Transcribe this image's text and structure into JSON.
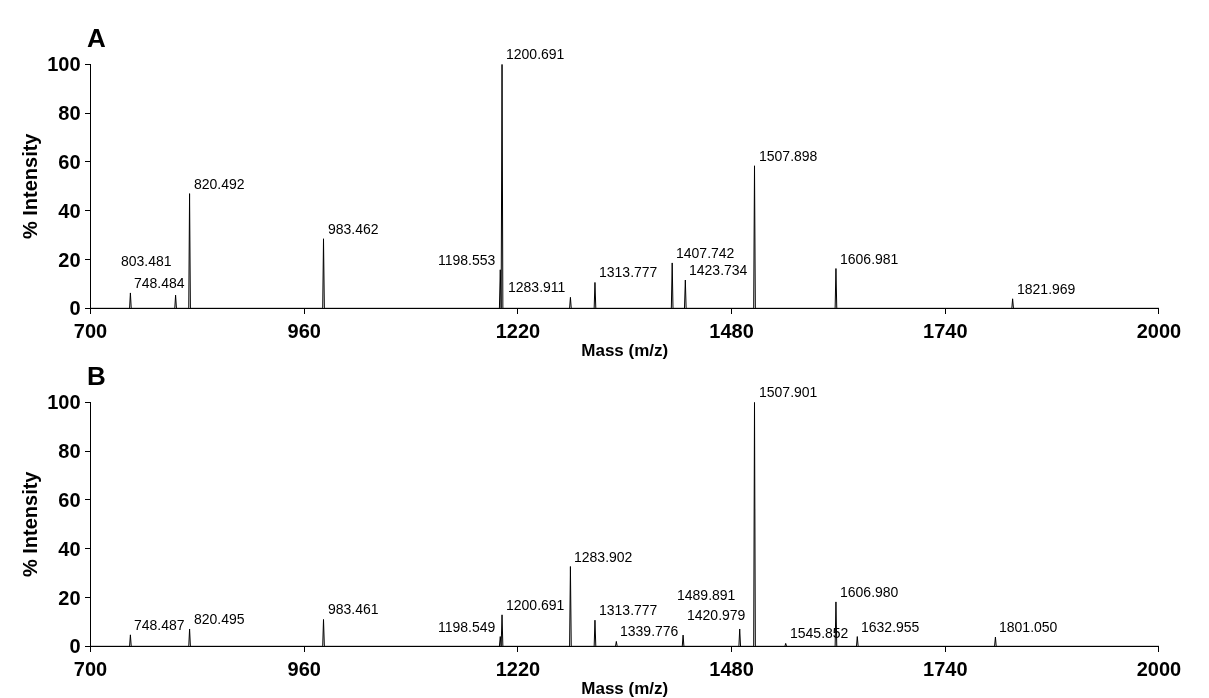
{
  "chart_data": [
    {
      "type": "line",
      "title": "A",
      "xlabel": "Mass (m/z)",
      "ylabel": "% Intensity",
      "x": [
        700,
        747.5,
        748.484,
        749.5,
        802.5,
        803.481,
        804.5,
        819.5,
        820.492,
        821.5,
        982.5,
        983.462,
        984.5,
        1197.5,
        1198.553,
        1199.6,
        1200.691,
        1201.7,
        1282.9,
        1283.911,
        1284.9,
        1312.8,
        1313.777,
        1314.8,
        1406.7,
        1407.742,
        1408.7,
        1422.7,
        1423.734,
        1424.7,
        1506.9,
        1507.898,
        1508.9,
        1606.0,
        1606.981,
        1608.0,
        1821.0,
        1821.969,
        1823.0,
        2000
      ],
      "values": [
        0,
        0,
        6.3,
        0,
        0,
        5.4,
        0,
        0,
        47,
        0,
        0,
        28.5,
        0,
        0,
        15.8,
        0,
        100,
        0,
        0,
        4.5,
        0,
        0,
        10.6,
        0,
        0,
        18.6,
        0,
        0,
        11.6,
        0,
        0,
        58.4,
        0,
        0,
        16.3,
        0,
        0,
        3.9,
        0,
        0
      ],
      "color": "#000000",
      "xlim": [
        700,
        2000
      ],
      "xticks": [
        700,
        960,
        1220,
        1480,
        1740,
        2000
      ],
      "ylim": [
        0,
        100
      ],
      "yticks": [
        0,
        20,
        40,
        60,
        80,
        100
      ],
      "annotations": [
        {
          "text": "748.484",
          "x": 748.484,
          "y": 6.3
        },
        {
          "text": "803.481",
          "x": 803.481,
          "y": 5.4
        },
        {
          "text": "820.492",
          "x": 820.492,
          "y": 47
        },
        {
          "text": "983.462",
          "x": 983.462,
          "y": 28.5
        },
        {
          "text": "1198.553",
          "x": 1198.553,
          "y": 15.8
        },
        {
          "text": "1200.691",
          "x": 1200.691,
          "y": 100
        },
        {
          "text": "1283.911",
          "x": 1283.911,
          "y": 4.5
        },
        {
          "text": "1313.777",
          "x": 1313.777,
          "y": 10.6
        },
        {
          "text": "1407.742",
          "x": 1407.742,
          "y": 18.6
        },
        {
          "text": "1423.734",
          "x": 1423.734,
          "y": 11.6
        },
        {
          "text": "1507.898",
          "x": 1507.898,
          "y": 58.4
        },
        {
          "text": "1606.981",
          "x": 1606.981,
          "y": 16.3
        },
        {
          "text": "1821.969",
          "x": 1821.969,
          "y": 3.9
        }
      ]
    },
    {
      "type": "line",
      "title": "B",
      "xlabel": "Mass (m/z)",
      "ylabel": "% Intensity",
      "x": [
        700,
        747.5,
        748.487,
        749.5,
        819.5,
        820.495,
        821.5,
        982.5,
        983.461,
        984.5,
        1197.5,
        1198.549,
        1199.6,
        1200.691,
        1201.7,
        1282.9,
        1283.902,
        1284.9,
        1312.8,
        1313.777,
        1314.8,
        1338.8,
        1339.776,
        1340.8,
        1420.0,
        1420.979,
        1422.0,
        1488.9,
        1489.891,
        1490.9,
        1506.9,
        1507.901,
        1508.9,
        1544.9,
        1545.852,
        1546.9,
        1606.0,
        1606.98,
        1608.0,
        1632.0,
        1632.955,
        1634.0,
        1800.0,
        1801.05,
        1802.0,
        2000
      ],
      "values": [
        0,
        0,
        4.7,
        0,
        0,
        7.1,
        0,
        0,
        11,
        0,
        0,
        4,
        0,
        12.9,
        0,
        0,
        32.7,
        0,
        0,
        10.7,
        0,
        0,
        2,
        0,
        0,
        4.6,
        0,
        0,
        7.1,
        0,
        0,
        100,
        0,
        0,
        1.2,
        0,
        0,
        18.2,
        0,
        0,
        4,
        0,
        0,
        3.8,
        0,
        0
      ],
      "color": "#000000",
      "xlim": [
        700,
        2000
      ],
      "xticks": [
        700,
        960,
        1220,
        1480,
        1740,
        2000
      ],
      "ylim": [
        0,
        100
      ],
      "yticks": [
        0,
        20,
        40,
        60,
        80,
        100
      ],
      "annotations": [
        {
          "text": "748.487",
          "x": 748.487,
          "y": 4.7
        },
        {
          "text": "820.495",
          "x": 820.495,
          "y": 7.1
        },
        {
          "text": "983.461",
          "x": 983.461,
          "y": 11
        },
        {
          "text": "1198.549",
          "x": 1198.549,
          "y": 4
        },
        {
          "text": "1200.691",
          "x": 1200.691,
          "y": 12.9
        },
        {
          "text": "1283.902",
          "x": 1283.902,
          "y": 32.7
        },
        {
          "text": "1313.777",
          "x": 1313.777,
          "y": 10.7
        },
        {
          "text": "1339.776",
          "x": 1339.776,
          "y": 2
        },
        {
          "text": "1420.979",
          "x": 1420.979,
          "y": 4.6
        },
        {
          "text": "1489.891",
          "x": 1489.891,
          "y": 7.1
        },
        {
          "text": "1507.901",
          "x": 1507.901,
          "y": 100
        },
        {
          "text": "1545.852",
          "x": 1545.852,
          "y": 1.2
        },
        {
          "text": "1606.980",
          "x": 1606.98,
          "y": 18.2
        },
        {
          "text": "1632.955",
          "x": 1632.955,
          "y": 4
        },
        {
          "text": "1801.050",
          "x": 1801.05,
          "y": 3.8
        }
      ]
    }
  ]
}
